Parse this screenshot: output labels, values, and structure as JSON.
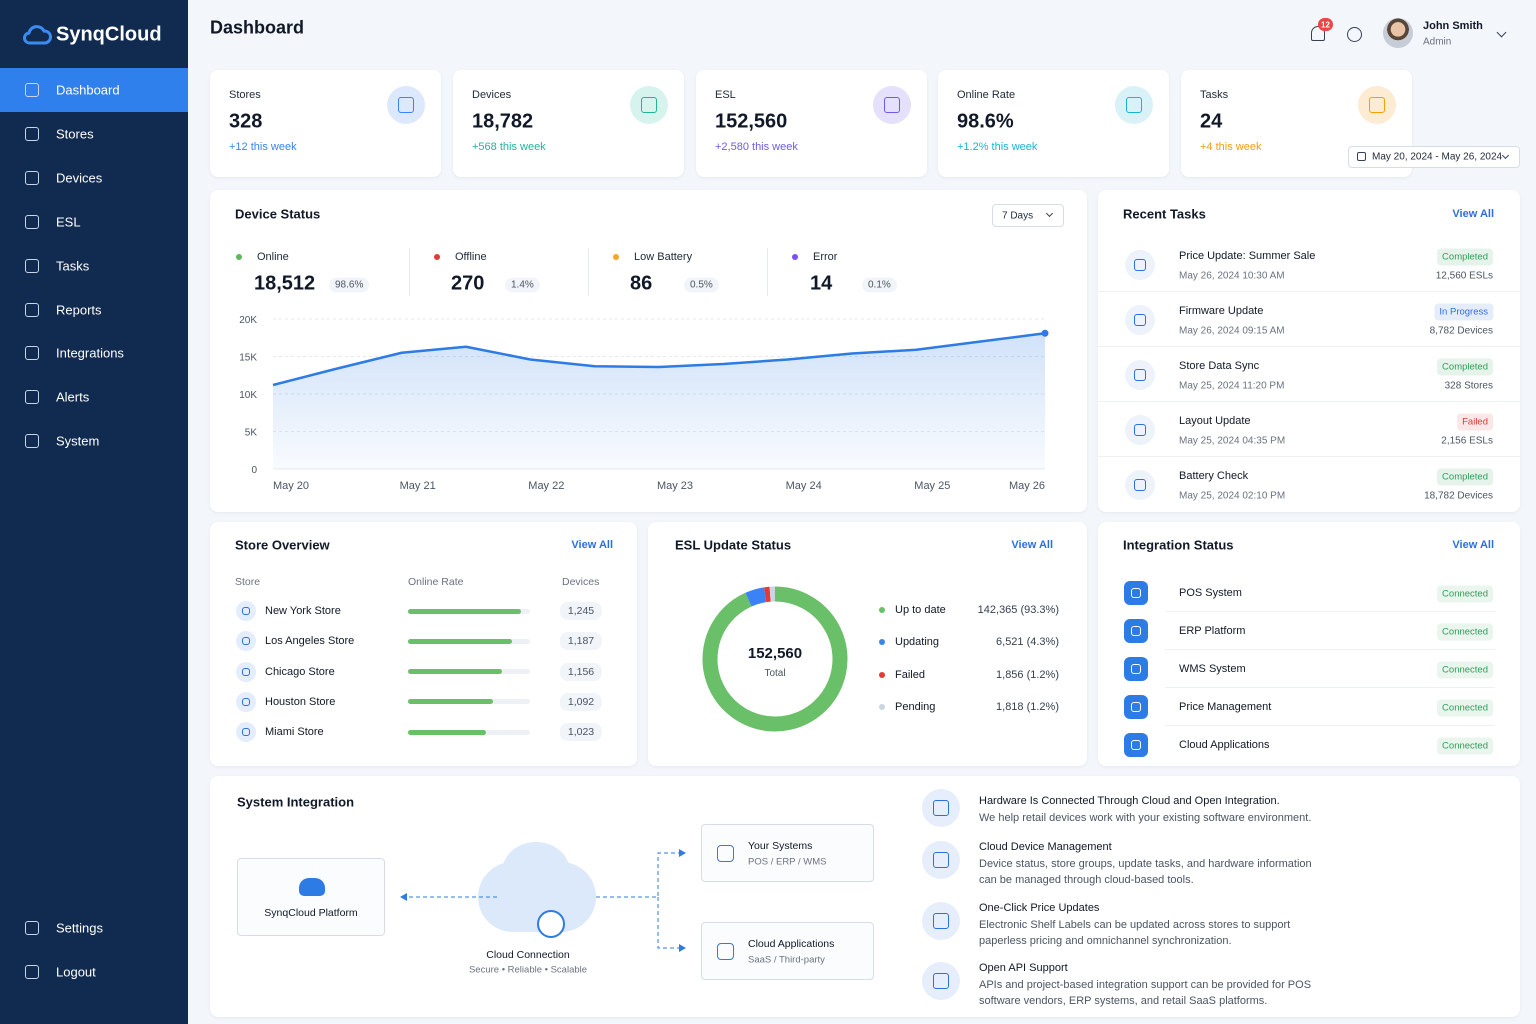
{
  "brand": "SynqCloud",
  "nav": [
    "Dashboard",
    "Stores",
    "Devices",
    "ESL",
    "Tasks",
    "Reports",
    "Integrations",
    "Alerts",
    "System"
  ],
  "nav_bottom": [
    "Settings",
    "Logout"
  ],
  "header": {
    "title": "Dashboard",
    "notifications": "12",
    "user": "John Smith",
    "role": "Admin",
    "date_range": "May 20, 2024 - May 26, 2024"
  },
  "stats": [
    {
      "label": "Stores",
      "value": "328",
      "change": "+12 this week",
      "color": "#3b82f6",
      "tint": "#dce8fb"
    },
    {
      "label": "Devices",
      "value": "18,782",
      "change": "+568 this week",
      "color": "#22b39b",
      "tint": "#d6f3ee"
    },
    {
      "label": "ESL",
      "value": "152,560",
      "change": "+2,580 this week",
      "color": "#6d5ce8",
      "tint": "#e5e0fb"
    },
    {
      "label": "Online Rate",
      "value": "98.6%",
      "change": "+1.2% this week",
      "color": "#18b5cf",
      "tint": "#d8f2f7"
    },
    {
      "label": "Tasks",
      "value": "24",
      "change": "+4 this week",
      "color": "#f59e0b",
      "tint": "#fdebd3"
    }
  ],
  "device_status": {
    "title": "Device Status",
    "range": "7 Days",
    "items": [
      {
        "label": "Online",
        "value": "18,512",
        "share": "98.6%",
        "color": "#5cb85c"
      },
      {
        "label": "Offline",
        "value": "270",
        "share": "1.4%",
        "color": "#e53935"
      },
      {
        "label": "Low Battery",
        "value": "86",
        "share": "0.5%",
        "color": "#f5a623"
      },
      {
        "label": "Error",
        "value": "14",
        "share": "0.1%",
        "color": "#7c4dff"
      }
    ]
  },
  "chart_data": [
    {
      "type": "line",
      "categories": [
        "May 20",
        null,
        "May 21",
        null,
        "May 22",
        null,
        "May 23",
        null,
        "May 24",
        null,
        "May 25",
        null,
        "May 26"
      ],
      "values": [
        11200,
        13400,
        15500,
        16300,
        14600,
        13700,
        13600,
        14000,
        14600,
        15400,
        15900,
        17000,
        18100
      ],
      "color": "#2d7be5",
      "ylim": [
        0,
        20000
      ],
      "yticks": [
        0,
        {
          "value": 5000,
          "label": "5K"
        },
        {
          "value": 10000,
          "label": "10K"
        },
        {
          "value": 15000,
          "label": "15K"
        },
        {
          "value": 20000,
          "label": "20K"
        }
      ],
      "grid": true
    },
    {
      "type": "pie",
      "categories": [
        "Up to date",
        "Updating",
        "Failed",
        "Pending"
      ],
      "values": [
        142365,
        6521,
        1856,
        1818
      ],
      "value_labels": [
        "142,365 (93.3%)",
        "6,521 (4.3%)",
        "1,856 (1.2%)",
        "1,818 (1.2%)"
      ],
      "colors": [
        "#6abf69",
        "#3b82f6",
        "#e53935",
        "#cbd5e1"
      ],
      "center_text": "152,560",
      "center_caption": "Total"
    }
  ],
  "recent_tasks": {
    "title": "Recent Tasks",
    "view_all": "View All",
    "items": [
      {
        "title": "Price Update: Summer Sale",
        "date": "May 26, 2024 10:30 AM",
        "status": "Completed",
        "status_color": "#2e9e5b",
        "count": "12,560 ESLs"
      },
      {
        "title": "Firmware Update",
        "date": "May 26, 2024 09:15 AM",
        "status": "In Progress",
        "status_color": "#2d6fe0",
        "count": "8,782 Devices"
      },
      {
        "title": "Store Data Sync",
        "date": "May 25, 2024 11:20 PM",
        "status": "Completed",
        "status_color": "#2e9e5b",
        "count": "328 Stores"
      },
      {
        "title": "Layout Update",
        "date": "May 25, 2024 04:35 PM",
        "status": "Failed",
        "status_color": "#e03a3a",
        "count": "2,156 ESLs"
      },
      {
        "title": "Battery Check",
        "date": "May 25, 2024 02:10 PM",
        "status": "Completed",
        "status_color": "#2e9e5b",
        "count": "18,782 Devices"
      }
    ]
  },
  "store_overview": {
    "title": "Store Overview",
    "view_all": "View All",
    "columns": [
      "Store",
      "Online Rate",
      "Devices"
    ],
    "rows": [
      {
        "name": "New York Store",
        "online_rate": 93,
        "devices": "1,245"
      },
      {
        "name": "Los Angeles Store",
        "online_rate": 85,
        "devices": "1,187"
      },
      {
        "name": "Chicago Store",
        "online_rate": 77,
        "devices": "1,156"
      },
      {
        "name": "Houston Store",
        "online_rate": 70,
        "devices": "1,092"
      },
      {
        "name": "Miami Store",
        "online_rate": 64,
        "devices": "1,023"
      }
    ]
  },
  "esl_panel": {
    "title": "ESL Update Status",
    "view_all": "View All"
  },
  "integration_status": {
    "title": "Integration Status",
    "view_all": "View All",
    "items": [
      {
        "name": "POS System",
        "status": "Connected"
      },
      {
        "name": "ERP Platform",
        "status": "Connected"
      },
      {
        "name": "WMS System",
        "status": "Connected"
      },
      {
        "name": "Price Management",
        "status": "Connected"
      },
      {
        "name": "Cloud Applications",
        "status": "Connected"
      }
    ]
  },
  "system_integration": {
    "title": "System Integration",
    "platform": "SynqCloud Platform",
    "connection": {
      "title": "Cloud Connection",
      "subtitle": "Secure • Reliable • Scalable"
    },
    "targets": [
      {
        "title": "Your Systems",
        "subtitle": "POS / ERP / WMS"
      },
      {
        "title": "Cloud Applications",
        "subtitle": "SaaS / Third-party"
      }
    ],
    "features": [
      {
        "title": "Hardware Is Connected Through Cloud and Open Integration.",
        "text": "We help retail devices work with your existing software environment."
      },
      {
        "title": "Cloud Device Management",
        "text": "Device status, store groups, update tasks, and hardware information can be managed through cloud-based tools."
      },
      {
        "title": "One-Click Price Updates",
        "text": "Electronic Shelf Labels can be updated across stores to support paperless pricing and omnichannel synchronization."
      },
      {
        "title": "Open API Support",
        "text": "APIs and project-based integration support can be provided for POS software vendors, ERP systems, and retail SaaS platforms."
      }
    ]
  }
}
